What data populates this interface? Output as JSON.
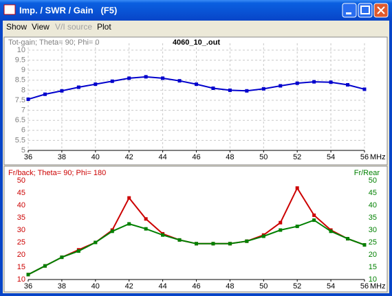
{
  "window": {
    "title": "Imp. / SWR / Gain   (F5)",
    "menu": [
      "Show",
      "View",
      "V/I source",
      "Plot"
    ]
  },
  "chart_data": [
    {
      "type": "line",
      "title": "4060_10_.out",
      "x_label": "MHz",
      "x": [
        36,
        37,
        38,
        39,
        40,
        41,
        42,
        43,
        44,
        45,
        46,
        47,
        48,
        49,
        50,
        51,
        52,
        53,
        54,
        55,
        56
      ],
      "series": [
        {
          "name": "Tot-gain; Theta= 90; Phi= 0",
          "color": "#0000cc",
          "values": [
            7.55,
            7.8,
            7.97,
            8.15,
            8.3,
            8.45,
            8.6,
            8.67,
            8.6,
            8.47,
            8.3,
            8.1,
            8.0,
            7.97,
            8.07,
            8.22,
            8.35,
            8.42,
            8.4,
            8.27,
            8.05
          ]
        }
      ],
      "xlim": [
        36,
        56
      ],
      "xticks": [
        36,
        38,
        40,
        42,
        44,
        46,
        48,
        50,
        52,
        54,
        56
      ],
      "ylim": [
        5,
        10
      ],
      "yticks": [
        5,
        5.5,
        6,
        6.5,
        7,
        7.5,
        8,
        8.5,
        9,
        9.5,
        10
      ],
      "grid": true
    },
    {
      "type": "line",
      "x_label": "MHz",
      "x": [
        36,
        37,
        38,
        39,
        40,
        41,
        42,
        43,
        44,
        45,
        46,
        47,
        48,
        49,
        50,
        51,
        52,
        53,
        54,
        55,
        56
      ],
      "series": [
        {
          "name": "Fr/back; Theta= 90; Phi= 180",
          "color": "#cc0000",
          "values": [
            12,
            15.5,
            19,
            22,
            25,
            30,
            43,
            34.5,
            28.5,
            26,
            24.5,
            24.5,
            24.5,
            25.5,
            28,
            33,
            47,
            36,
            30,
            26.5,
            24
          ]
        },
        {
          "name": "Fr/Rear",
          "color": "#008000",
          "axis": "y2",
          "values": [
            12,
            15.5,
            19,
            21.5,
            25,
            29.5,
            32.5,
            30.5,
            28,
            26,
            24.5,
            24.5,
            24.5,
            25.5,
            27.5,
            30,
            31.5,
            34,
            29.5,
            26.5,
            24
          ]
        }
      ],
      "xlim": [
        36,
        56
      ],
      "xticks": [
        36,
        38,
        40,
        42,
        44,
        46,
        48,
        50,
        52,
        54,
        56
      ],
      "ylim": [
        10,
        50
      ],
      "yticks": [
        10,
        15,
        20,
        25,
        30,
        35,
        40,
        45,
        50
      ],
      "y2lim": [
        10,
        50
      ],
      "y2ticks": [
        10,
        15,
        20,
        25,
        30,
        35,
        40,
        45,
        50
      ],
      "grid": false
    }
  ]
}
